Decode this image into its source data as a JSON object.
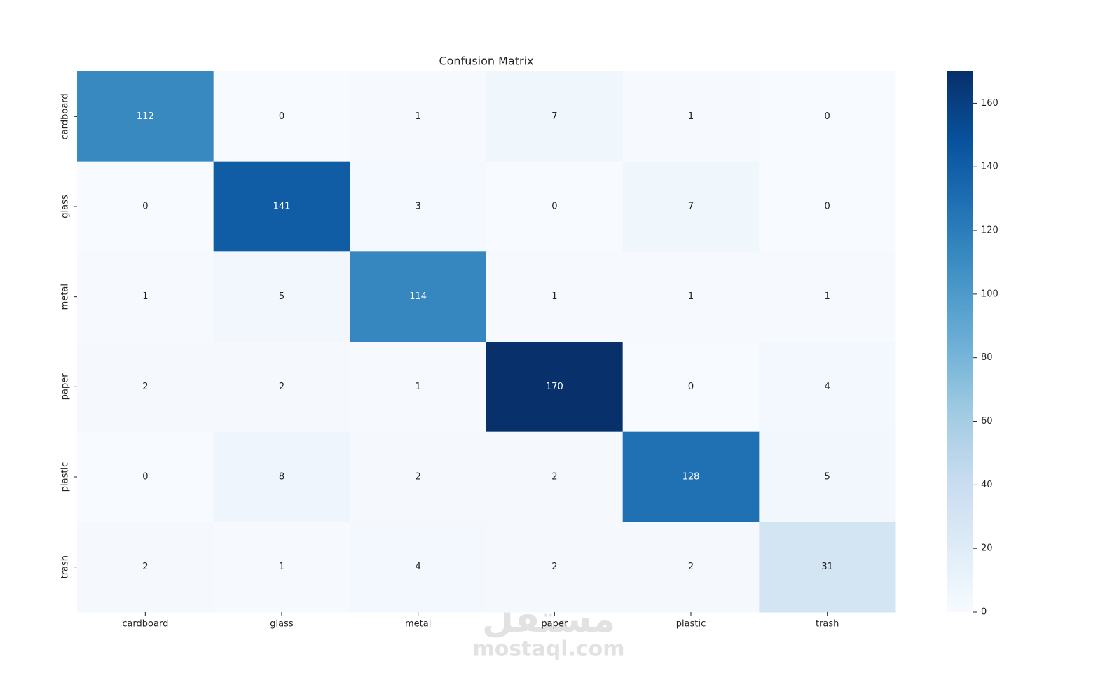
{
  "chart_data": {
    "type": "heatmap",
    "title": "Confusion Matrix",
    "x_categories": [
      "cardboard",
      "glass",
      "metal",
      "paper",
      "plastic",
      "trash"
    ],
    "y_categories": [
      "cardboard",
      "glass",
      "metal",
      "paper",
      "plastic",
      "trash"
    ],
    "values": [
      [
        112,
        0,
        1,
        7,
        1,
        0
      ],
      [
        0,
        141,
        3,
        0,
        7,
        0
      ],
      [
        1,
        5,
        114,
        1,
        1,
        1
      ],
      [
        2,
        2,
        1,
        170,
        0,
        4
      ],
      [
        0,
        8,
        2,
        2,
        128,
        5
      ],
      [
        2,
        1,
        4,
        2,
        2,
        31
      ]
    ],
    "colormap": "Blues",
    "clim": [
      0,
      170
    ],
    "cticks": [
      0,
      20,
      40,
      60,
      80,
      100,
      120,
      140,
      160
    ]
  },
  "watermark": [
    "مستقل",
    "mostaql.com"
  ]
}
